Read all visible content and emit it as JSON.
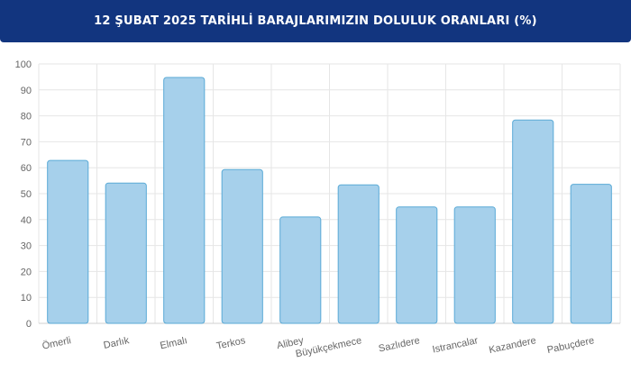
{
  "header": {
    "title": "12 ŞUBAT 2025 TARİHLİ BARAJLARIMIZIN DOLULUK ORANLARI (%)"
  },
  "colors": {
    "header_bg": "#12357f",
    "bar_fill": "#a6d0eb",
    "bar_stroke": "#5aaad6",
    "grid": "#e6e6e6",
    "axis_text": "#666666"
  },
  "chart_data": {
    "type": "bar",
    "title": "12 ŞUBAT 2025 TARİHLİ BARAJLARIMIZIN DOLULUK ORANLARI (%)",
    "xlabel": "",
    "ylabel": "",
    "ylim": [
      0,
      100
    ],
    "yticks": [
      0,
      10,
      20,
      30,
      40,
      50,
      60,
      70,
      80,
      90,
      100
    ],
    "grid": true,
    "legend": "none",
    "categories": [
      "Ömerli",
      "Darlık",
      "Elmalı",
      "Terkos",
      "Alibey",
      "Büyükçekmece",
      "Sazlıdere",
      "Istrancalar",
      "Kazandere",
      "Pabuçdere"
    ],
    "values": [
      62.8,
      54.1,
      94.8,
      59.3,
      41.0,
      53.4,
      44.9,
      44.9,
      78.4,
      53.6
    ]
  }
}
